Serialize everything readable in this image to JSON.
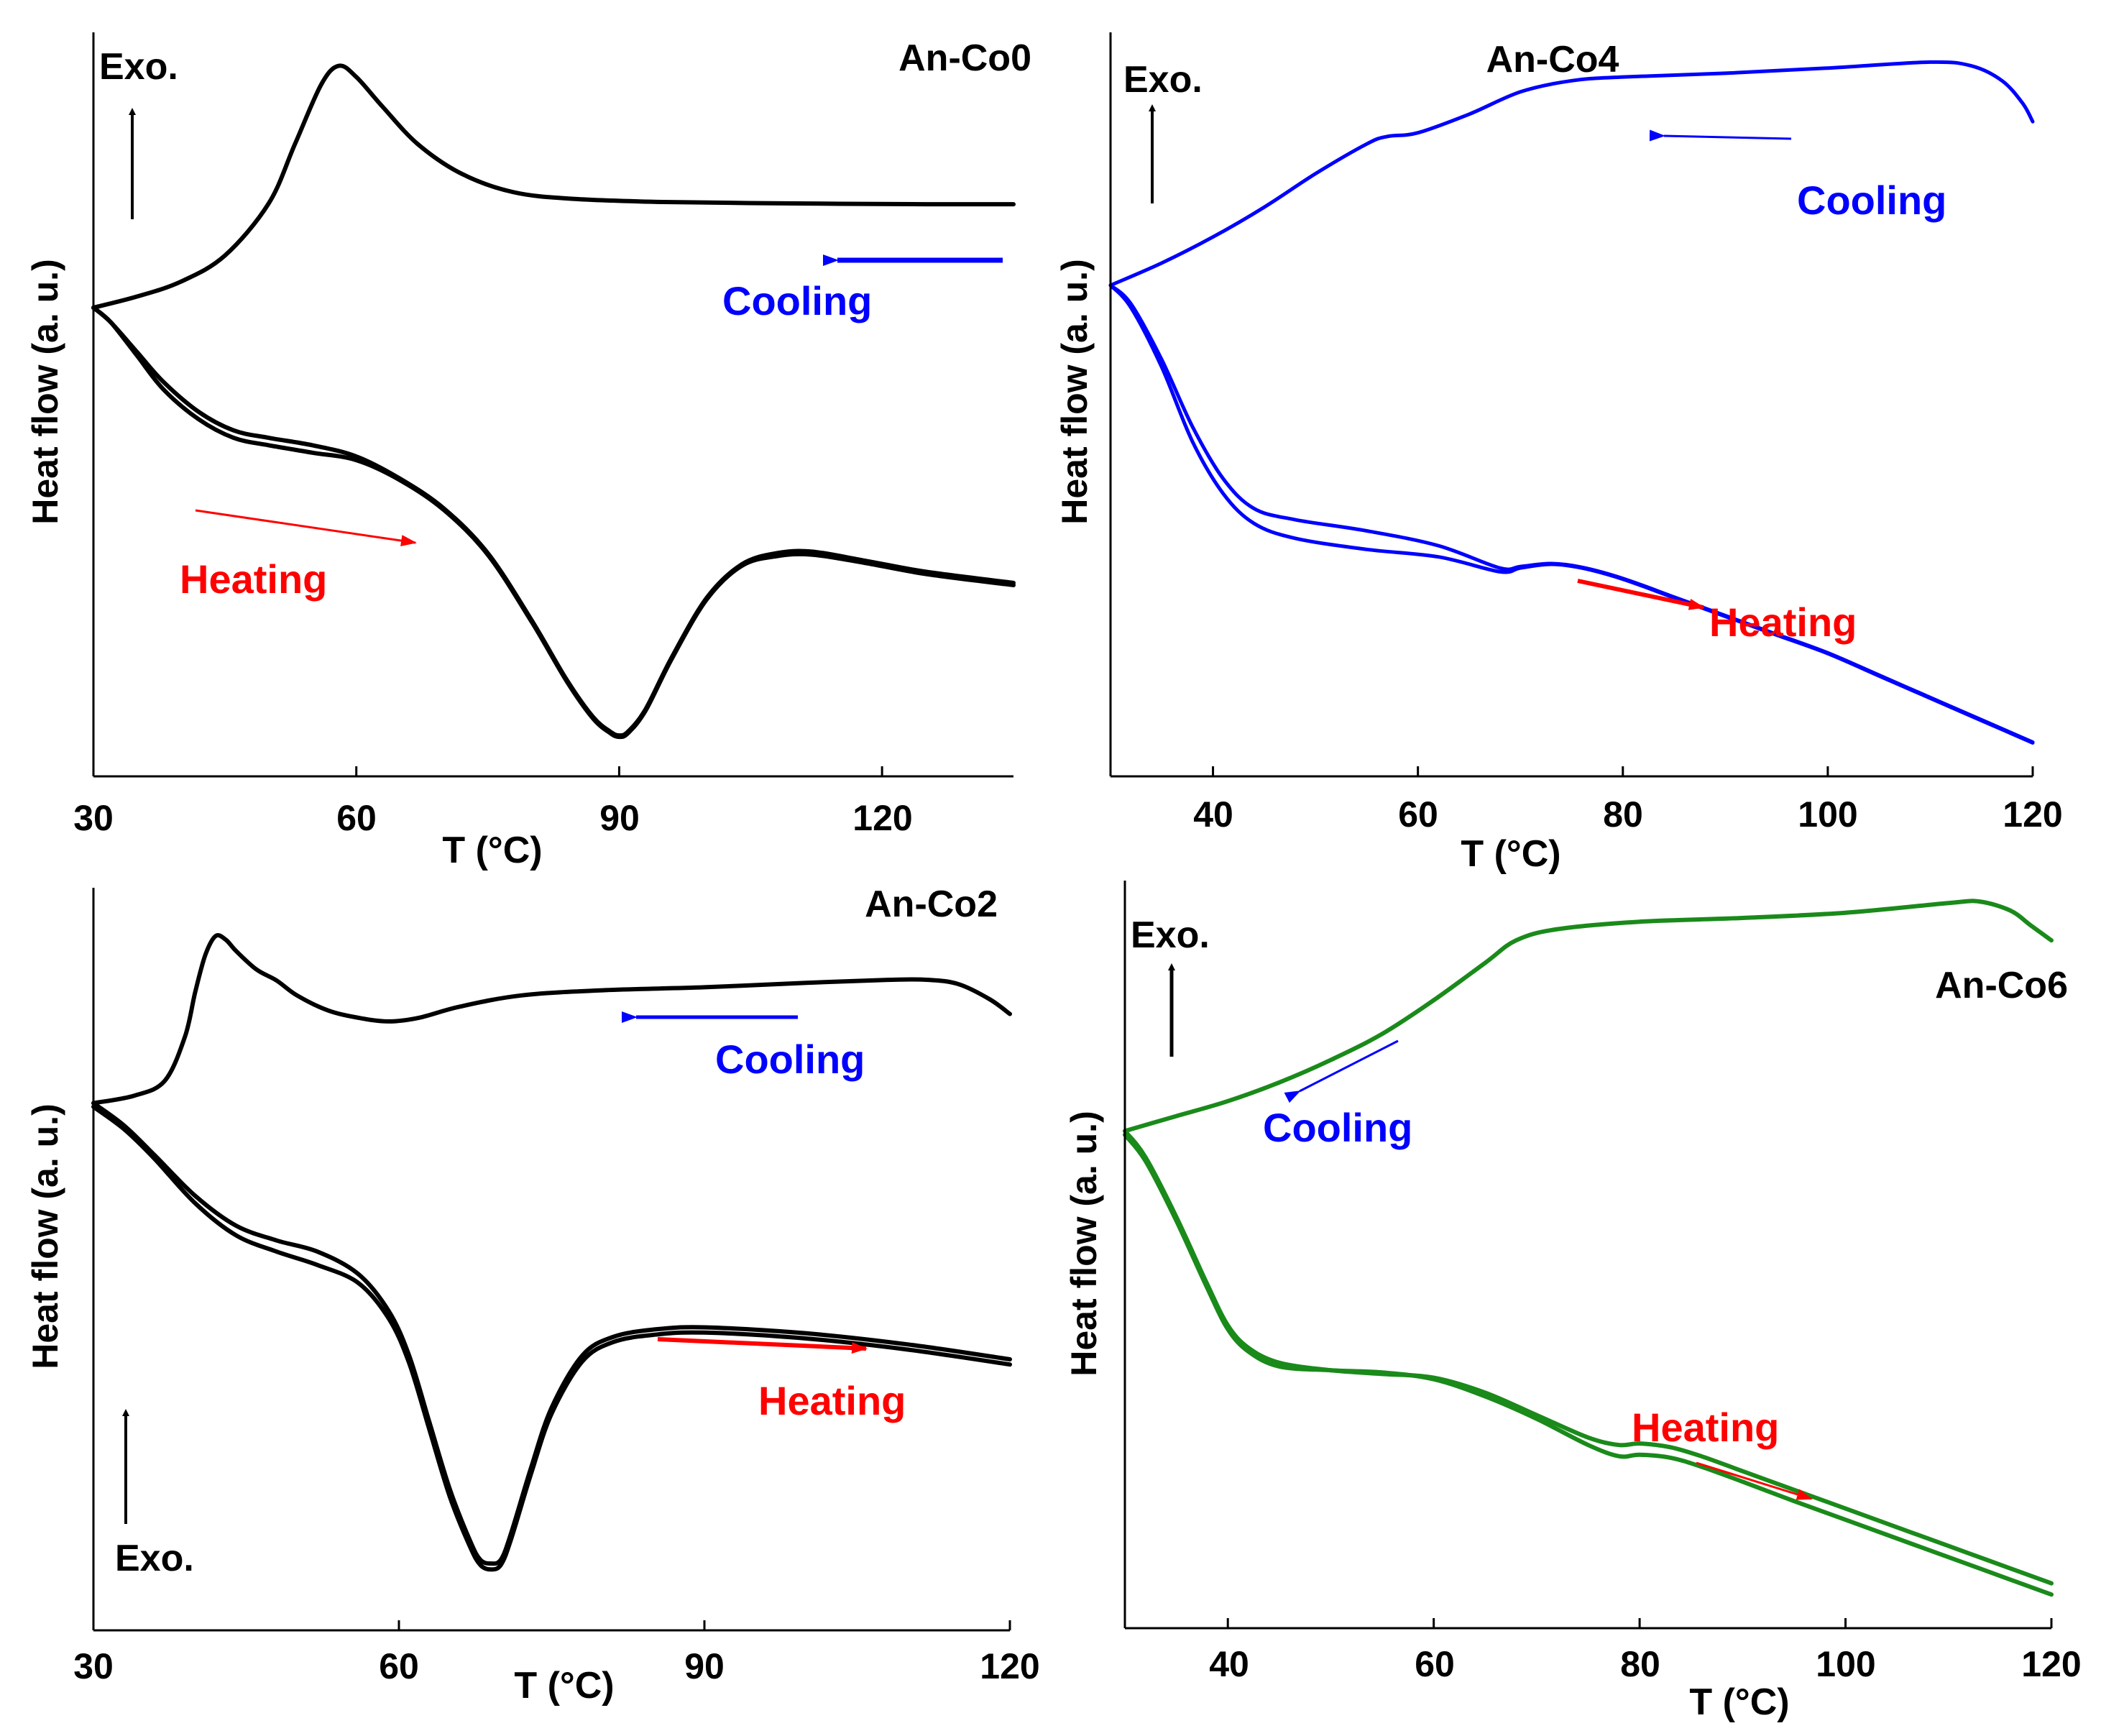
{
  "figure": {
    "type": "DSC thermograms, 4 panels"
  },
  "chart_data": [
    {
      "type": "line",
      "title": "An-Co0",
      "xlabel": "T (°C)",
      "ylabel": "Heat flow (a. u.)",
      "xlim": [
        30,
        135
      ],
      "ylim": [
        0,
        1
      ],
      "xticks": [
        30,
        60,
        90,
        120
      ],
      "xtick_labels": [
        "30",
        "60",
        "90",
        "120"
      ],
      "color": "#000000",
      "exo_label": "Exo.",
      "exo_placement": "top-left",
      "cooling_label": "Cooling",
      "heating_label": "Heating",
      "series": [
        {
          "name": "Cooling",
          "x": [
            30,
            35,
            40,
            45,
            50,
            53,
            56,
            58,
            60,
            63,
            67,
            72,
            78,
            85,
            95,
            110,
            125,
            135
          ],
          "values": [
            0.63,
            0.645,
            0.665,
            0.7,
            0.77,
            0.85,
            0.93,
            0.955,
            0.94,
            0.9,
            0.85,
            0.81,
            0.785,
            0.776,
            0.772,
            0.77,
            0.769,
            0.769
          ]
        },
        {
          "name": "Heating run 1",
          "x": [
            30,
            32,
            35,
            38,
            42,
            46,
            50,
            55,
            60,
            65,
            70,
            75,
            80,
            84,
            87,
            89,
            90,
            91,
            93,
            96,
            100,
            104,
            108,
            112,
            118,
            125,
            135
          ],
          "values": [
            0.63,
            0.61,
            0.57,
            0.53,
            0.49,
            0.465,
            0.455,
            0.445,
            0.43,
            0.4,
            0.36,
            0.3,
            0.21,
            0.13,
            0.08,
            0.06,
            0.055,
            0.06,
            0.09,
            0.16,
            0.24,
            0.285,
            0.3,
            0.302,
            0.29,
            0.275,
            0.26
          ]
        },
        {
          "name": "Heating run 2",
          "x": [
            30,
            32,
            35,
            38,
            42,
            46,
            50,
            55,
            60,
            65,
            70,
            75,
            80,
            84,
            87,
            89,
            90,
            91,
            93,
            96,
            100,
            104,
            108,
            112,
            118,
            125,
            135
          ],
          "values": [
            0.63,
            0.61,
            0.565,
            0.52,
            0.48,
            0.455,
            0.445,
            0.435,
            0.425,
            0.398,
            0.358,
            0.298,
            0.208,
            0.128,
            0.078,
            0.058,
            0.053,
            0.058,
            0.088,
            0.158,
            0.238,
            0.283,
            0.296,
            0.298,
            0.287,
            0.272,
            0.257
          ]
        }
      ]
    },
    {
      "type": "line",
      "title": "An-Co4",
      "xlabel": "T (°C)",
      "ylabel": "Heat flow (a. u.)",
      "xlim": [
        30,
        120
      ],
      "ylim": [
        0,
        1
      ],
      "xticks": [
        40,
        60,
        80,
        100,
        120
      ],
      "xtick_labels": [
        "40",
        "60",
        "80",
        "100",
        "120"
      ],
      "color": "#0000ff",
      "exo_label": "Exo.",
      "exo_placement": "top-left",
      "cooling_label": "Cooling",
      "heating_label": "Heating",
      "series": [
        {
          "name": "Cooling",
          "x": [
            30,
            35,
            40,
            45,
            50,
            55,
            57,
            60,
            65,
            70,
            75,
            80,
            90,
            100,
            110,
            114,
            117,
            119,
            120
          ],
          "values": [
            0.66,
            0.69,
            0.725,
            0.765,
            0.81,
            0.85,
            0.86,
            0.865,
            0.89,
            0.92,
            0.935,
            0.94,
            0.945,
            0.952,
            0.96,
            0.955,
            0.935,
            0.905,
            0.88
          ]
        },
        {
          "name": "Heating run 1",
          "x": [
            30,
            32,
            35,
            38,
            41,
            44,
            48,
            55,
            62,
            68,
            70,
            73,
            76,
            80,
            85,
            90,
            95,
            100,
            105,
            110,
            115,
            120
          ],
          "values": [
            0.66,
            0.63,
            0.55,
            0.45,
            0.38,
            0.34,
            0.32,
            0.305,
            0.295,
            0.275,
            0.28,
            0.285,
            0.28,
            0.265,
            0.24,
            0.215,
            0.19,
            0.165,
            0.135,
            0.105,
            0.075,
            0.045
          ]
        },
        {
          "name": "Heating run 2",
          "x": [
            30,
            32,
            35,
            38,
            41,
            44,
            48,
            55,
            62,
            68,
            70,
            73,
            76,
            80,
            85,
            90,
            95,
            100,
            105,
            110,
            115,
            120
          ],
          "values": [
            0.66,
            0.635,
            0.56,
            0.47,
            0.4,
            0.36,
            0.345,
            0.33,
            0.31,
            0.28,
            0.282,
            0.286,
            0.281,
            0.266,
            0.241,
            0.216,
            0.191,
            0.166,
            0.136,
            0.106,
            0.076,
            0.046
          ]
        }
      ]
    },
    {
      "type": "line",
      "title": "An-Co2",
      "xlabel": "T (°C)",
      "ylabel": "Heat flow (a. u.)",
      "xlim": [
        30,
        120
      ],
      "ylim": [
        0,
        1
      ],
      "xticks": [
        30,
        60,
        90,
        120
      ],
      "xtick_labels": [
        "30",
        "60",
        "90",
        "120"
      ],
      "color": "#000000",
      "exo_label": "Exo.",
      "exo_placement": "bottom-left",
      "cooling_label": "Cooling",
      "heating_label": "Heating",
      "series": [
        {
          "name": "Cooling",
          "x": [
            30,
            34,
            37,
            39,
            40,
            41,
            42,
            43,
            44,
            46,
            48,
            50,
            53,
            56,
            59,
            62,
            66,
            72,
            80,
            90,
            100,
            108,
            112,
            115,
            118,
            120
          ],
          "values": [
            0.71,
            0.72,
            0.74,
            0.8,
            0.86,
            0.91,
            0.935,
            0.93,
            0.915,
            0.89,
            0.875,
            0.855,
            0.835,
            0.825,
            0.82,
            0.825,
            0.84,
            0.855,
            0.862,
            0.866,
            0.872,
            0.876,
            0.876,
            0.87,
            0.85,
            0.83
          ]
        },
        {
          "name": "Heating run 1",
          "x": [
            30,
            33,
            36,
            40,
            44,
            48,
            52,
            56,
            59,
            61,
            63,
            65,
            67,
            68,
            69,
            70,
            71,
            73,
            75,
            78,
            81,
            85,
            90,
            100,
            110,
            120
          ],
          "values": [
            0.71,
            0.68,
            0.64,
            0.585,
            0.545,
            0.525,
            0.51,
            0.48,
            0.43,
            0.37,
            0.28,
            0.19,
            0.12,
            0.095,
            0.09,
            0.095,
            0.13,
            0.22,
            0.3,
            0.37,
            0.395,
            0.405,
            0.408,
            0.4,
            0.385,
            0.365
          ]
        },
        {
          "name": "Heating run 2",
          "x": [
            30,
            33,
            36,
            40,
            44,
            48,
            52,
            56,
            59,
            61,
            63,
            65,
            67,
            68,
            69,
            70,
            71,
            73,
            75,
            78,
            81,
            85,
            90,
            100,
            110,
            120
          ],
          "values": [
            0.705,
            0.675,
            0.635,
            0.575,
            0.532,
            0.51,
            0.492,
            0.468,
            0.42,
            0.36,
            0.27,
            0.18,
            0.112,
            0.088,
            0.082,
            0.088,
            0.122,
            0.212,
            0.292,
            0.362,
            0.388,
            0.398,
            0.401,
            0.393,
            0.378,
            0.358
          ]
        }
      ]
    },
    {
      "type": "line",
      "title": "An-Co6",
      "xlabel": "T (°C)",
      "ylabel": "Heat flow (a. u.)",
      "xlim": [
        30,
        120
      ],
      "ylim": [
        0,
        1
      ],
      "xticks": [
        40,
        60,
        80,
        100,
        120
      ],
      "xtick_labels": [
        "40",
        "60",
        "80",
        "100",
        "120"
      ],
      "color": "#1a8a1a",
      "exo_label": "Exo.",
      "exo_placement": "top-left",
      "cooling_label": "Cooling",
      "heating_label": "Heating",
      "series": [
        {
          "name": "Cooling",
          "x": [
            30,
            35,
            40,
            45,
            50,
            55,
            60,
            65,
            68,
            72,
            80,
            90,
            100,
            110,
            113,
            116,
            118,
            120
          ],
          "values": [
            0.665,
            0.685,
            0.705,
            0.73,
            0.76,
            0.795,
            0.84,
            0.89,
            0.92,
            0.935,
            0.945,
            0.95,
            0.957,
            0.97,
            0.972,
            0.96,
            0.94,
            0.92
          ]
        },
        {
          "name": "Heating run 1",
          "x": [
            30,
            32,
            35,
            38,
            40,
            42,
            45,
            50,
            55,
            60,
            65,
            70,
            75,
            78,
            80,
            83,
            86,
            90,
            95,
            100,
            110,
            120
          ],
          "values": [
            0.665,
            0.63,
            0.55,
            0.46,
            0.405,
            0.375,
            0.355,
            0.345,
            0.34,
            0.335,
            0.315,
            0.285,
            0.255,
            0.245,
            0.247,
            0.242,
            0.23,
            0.21,
            0.185,
            0.16,
            0.11,
            0.06
          ]
        },
        {
          "name": "Heating run 2",
          "x": [
            30,
            32,
            35,
            38,
            40,
            42,
            45,
            50,
            55,
            60,
            65,
            70,
            75,
            78,
            80,
            83,
            86,
            90,
            95,
            100,
            110,
            120
          ],
          "values": [
            0.66,
            0.625,
            0.545,
            0.455,
            0.4,
            0.37,
            0.35,
            0.345,
            0.342,
            0.333,
            0.31,
            0.28,
            0.245,
            0.23,
            0.232,
            0.228,
            0.216,
            0.196,
            0.17,
            0.145,
            0.095,
            0.045
          ]
        }
      ]
    }
  ]
}
